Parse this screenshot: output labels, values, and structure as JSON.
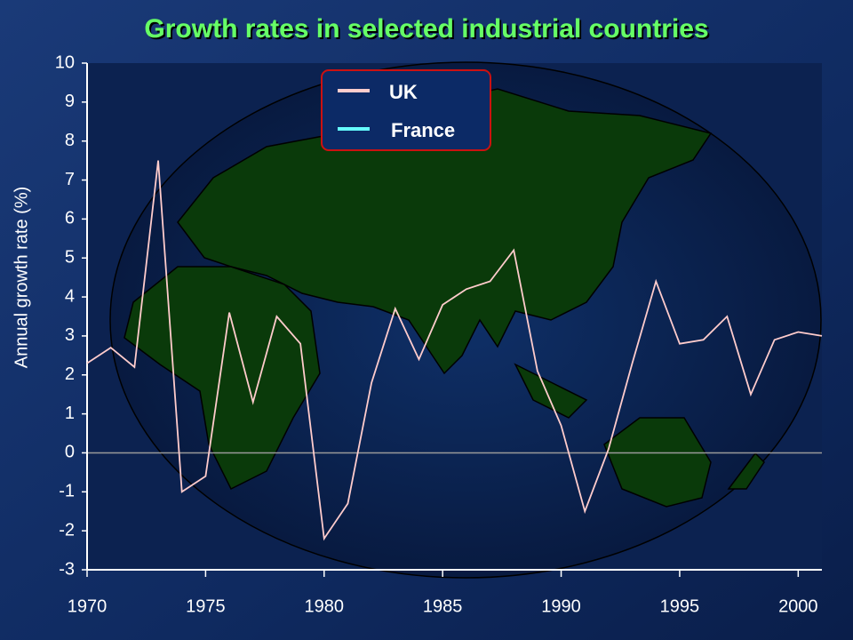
{
  "chart_data": {
    "type": "line",
    "title": "Growth rates in selected industrial countries",
    "y_label": "Annual growth rate (%)",
    "x": [
      1970,
      1971,
      1972,
      1973,
      1974,
      1975,
      1976,
      1977,
      1978,
      1979,
      1980,
      1981,
      1982,
      1983,
      1984,
      1985,
      1986,
      1987,
      1988,
      1989,
      1990,
      1991,
      1992,
      1993,
      1994,
      1995,
      1996,
      1997,
      1998,
      1999,
      2000,
      2001
    ],
    "series": [
      {
        "name": "UK",
        "color": "#ffcccc",
        "values": [
          2.3,
          2.7,
          2.2,
          7.5,
          -1.0,
          -0.6,
          3.6,
          1.3,
          3.5,
          2.8,
          -2.2,
          -1.3,
          1.8,
          3.7,
          2.4,
          3.8,
          4.2,
          4.4,
          5.2,
          2.1,
          0.7,
          -1.5,
          0.1,
          2.3,
          4.4,
          2.8,
          2.9,
          3.5,
          1.5,
          2.9,
          3.1,
          3.0
        ]
      },
      {
        "name": "France",
        "color": "#66ffff",
        "values": [
          null,
          null,
          null,
          null,
          null,
          null,
          null,
          null,
          null,
          null,
          null,
          null,
          null,
          null,
          null,
          null,
          null,
          null,
          null,
          null,
          null,
          null,
          null,
          null,
          null,
          null,
          null,
          null,
          null,
          null,
          null,
          null
        ]
      }
    ],
    "xlim": [
      1970,
      2001
    ],
    "xticks": [
      1970,
      1975,
      1980,
      1985,
      1990,
      1995,
      2000
    ],
    "ylim": [
      -3,
      10
    ],
    "yticks": [
      -3,
      -2,
      -1,
      0,
      1,
      2,
      3,
      4,
      5,
      6,
      7,
      8,
      9,
      10
    ],
    "zero_line": true
  }
}
